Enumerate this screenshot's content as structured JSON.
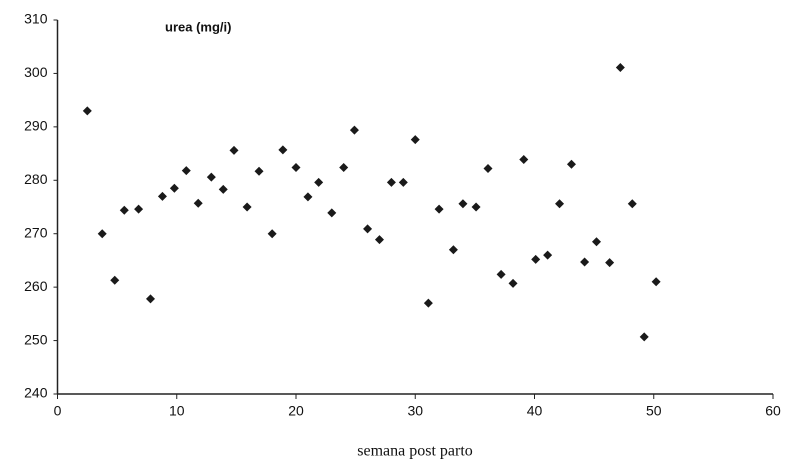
{
  "chart_data": {
    "type": "scatter",
    "annotation": "urea (mg/i)",
    "x_label": "semana post parto",
    "color": "#1a1a1a",
    "x": [
      2.5,
      3.75,
      4.8,
      5.6,
      6.8,
      7.8,
      8.8,
      9.8,
      10.8,
      11.8,
      12.9,
      13.9,
      14.8,
      15.9,
      16.9,
      18,
      18.9,
      20,
      21,
      21.9,
      23,
      24,
      24.9,
      26,
      27,
      28,
      29,
      30,
      31.1,
      32,
      33.2,
      34,
      35.1,
      36.1,
      37.2,
      38.2,
      39.1,
      40.1,
      41.1,
      42.1,
      43.1,
      44.2,
      45.2,
      46.3,
      47.2,
      48.2,
      49.2,
      50.2
    ],
    "values": [
      293,
      270,
      261.3,
      274.4,
      274.6,
      257.8,
      277,
      278.5,
      281.8,
      275.7,
      280.6,
      278.3,
      285.6,
      275,
      281.7,
      270,
      285.7,
      282.4,
      276.9,
      279.6,
      273.9,
      282.4,
      289.4,
      270.9,
      268.9,
      279.6,
      279.6,
      287.6,
      257,
      274.6,
      267,
      275.6,
      275,
      282.2,
      262.4,
      260.7,
      283.9,
      265.2,
      266,
      275.6,
      283,
      264.7,
      268.5,
      264.6,
      301.1,
      275.6,
      250.7,
      261
    ],
    "xlim": [
      0,
      60
    ],
    "xticks": [
      0,
      10,
      20,
      30,
      40,
      50,
      60
    ],
    "ylim": [
      240,
      310
    ],
    "yticks": [
      240,
      250,
      260,
      270,
      280,
      290,
      300,
      310
    ]
  }
}
